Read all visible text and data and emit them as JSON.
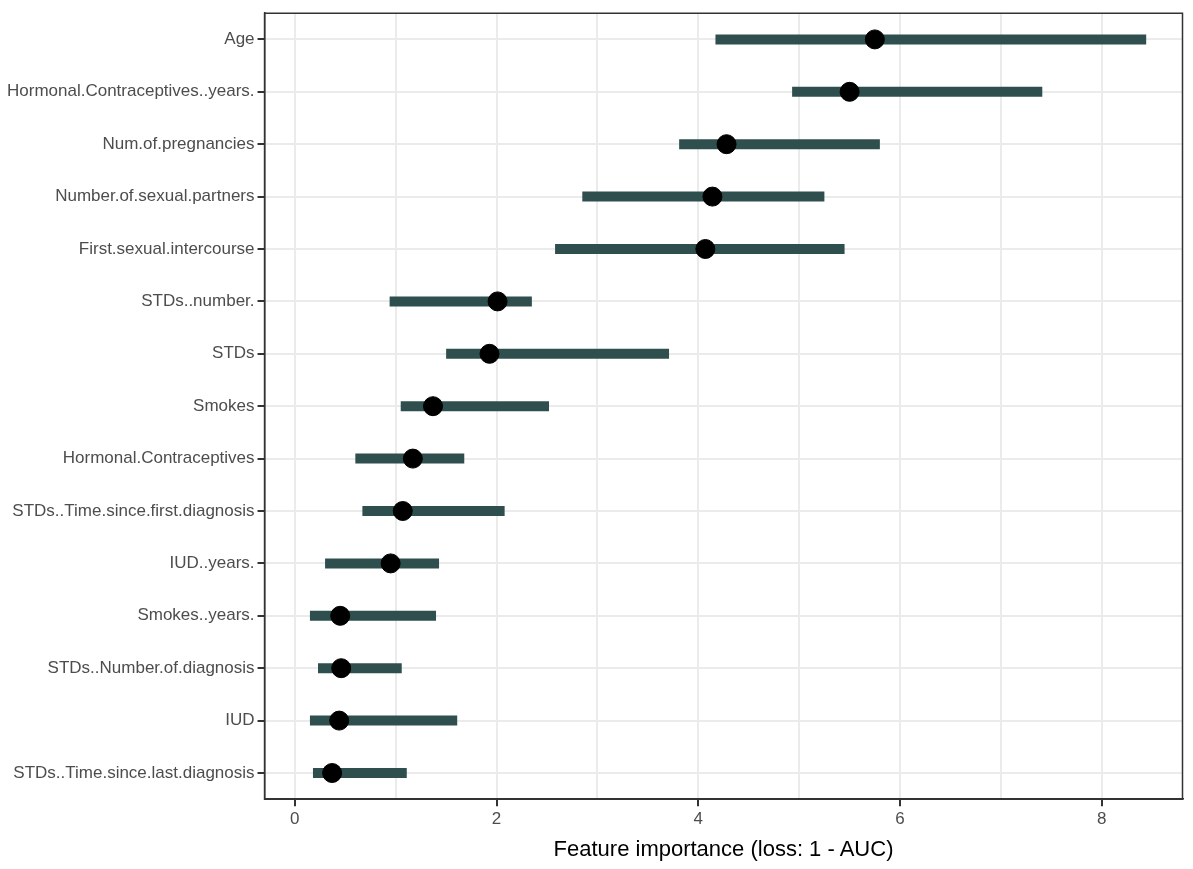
{
  "chart_data": {
    "type": "scatter",
    "orientation": "horizontal",
    "xlabel": "Feature importance (loss: 1 - AUC)",
    "categories": [
      "Age",
      "Hormonal.Contraceptives..years.",
      "Num.of.pregnancies",
      "Number.of.sexual.partners",
      "First.sexual.intercourse",
      "STDs..number.",
      "STDs",
      "Smokes",
      "Hormonal.Contraceptives",
      "STDs..Time.since.first.diagnosis",
      "IUD..years.",
      "Smokes..years.",
      "STDs..Number.of.diagnosis",
      "IUD",
      "STDs..Time.since.last.diagnosis"
    ],
    "series": [
      {
        "color": "#000000",
        "values": [
          5.75,
          5.5,
          4.28,
          4.14,
          4.07,
          2.01,
          1.93,
          1.37,
          1.17,
          1.07,
          0.95,
          0.45,
          0.46,
          0.44,
          0.37
        ],
        "errors": [
          [
            4.17,
            8.44
          ],
          [
            4.93,
            7.41
          ],
          [
            3.81,
            5.8
          ],
          [
            2.85,
            5.25
          ],
          [
            2.58,
            5.45
          ],
          [
            0.94,
            2.35
          ],
          [
            1.5,
            3.71
          ],
          [
            1.05,
            2.52
          ],
          [
            0.6,
            1.68
          ],
          [
            0.67,
            2.08
          ],
          [
            0.3,
            1.43
          ],
          [
            0.15,
            1.4
          ],
          [
            0.23,
            1.06
          ],
          [
            0.15,
            1.61
          ],
          [
            0.18,
            1.11
          ]
        ]
      }
    ],
    "xlim": [
      -0.3,
      8.8
    ],
    "xticks": [
      0,
      {
        "value": 1,
        "label": null
      },
      2,
      {
        "value": 3,
        "label": null
      },
      4,
      {
        "value": 5,
        "label": null
      },
      6,
      {
        "value": 7,
        "label": null
      },
      8
    ],
    "grid": true,
    "legend": false,
    "marker": "circle"
  }
}
